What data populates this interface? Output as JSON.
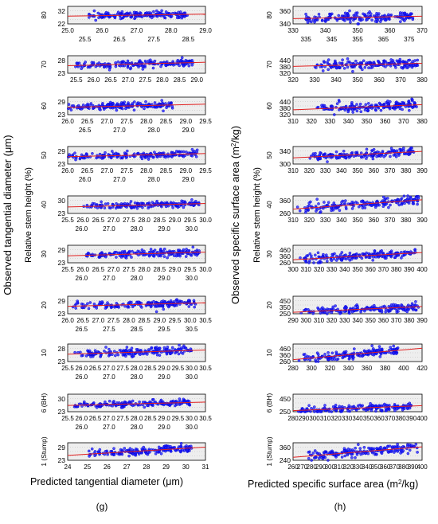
{
  "figure": {
    "panel_g_label": "(g)",
    "panel_h_label": "(h)",
    "left_ylabel_outer": "Observed tangential diameter (μm)",
    "right_ylabel_outer_prefix": "Observed specific surface area (m",
    "right_ylabel_outer_sup": "2",
    "right_ylabel_outer_suffix": "/kg)",
    "left_xlabel": "Predicted tangential diameter (μm)",
    "right_xlabel_prefix": "Predicted specific surface area (m",
    "right_xlabel_sup": "2",
    "right_xlabel_suffix": "/kg)",
    "stem_height_label": "Relative stem height (%)"
  },
  "colors": {
    "points": "#1a1aff",
    "points_stroke": "#0000cc",
    "fit_line": "#e02020",
    "panel_bg": "#eeeeee",
    "grid": "#bbbbbb"
  },
  "chart_data": [
    {
      "type": "scatter",
      "panel": "g",
      "height_label": "80",
      "xlim": [
        25.0,
        29.0
      ],
      "ylim": [
        20,
        34
      ],
      "top_ticks": [
        "25.0",
        "26.0",
        "27.0",
        "28.0",
        "29.0"
      ],
      "bottom_ticks": [
        "25.5",
        "26.5",
        "27.5",
        "28.5"
      ],
      "y_ticks": [
        "32",
        "22"
      ],
      "x_range": [
        25.6,
        28.5
      ],
      "y_center": 27,
      "y_spread": 2.3,
      "fit": [
        [
          25.0,
          26.2
        ],
        [
          29.0,
          27.8
        ]
      ]
    },
    {
      "type": "scatter",
      "panel": "g",
      "height_label": "70",
      "xlim": [
        25.5,
        29.0
      ],
      "ylim": [
        21,
        31
      ],
      "top_ticks": [],
      "bottom_ticks": [
        "25.5",
        "26.0",
        "26.5",
        "27.0",
        "27.5",
        "28.0",
        "28.5",
        "29.0"
      ],
      "y_ticks": [
        "28",
        "23"
      ],
      "x_range": [
        25.7,
        28.7
      ],
      "y_center": 26,
      "y_spread": 1.8,
      "fit": [
        [
          25.5,
          25.3
        ],
        [
          29.0,
          27.3
        ]
      ]
    },
    {
      "type": "scatter",
      "panel": "g",
      "height_label": "60",
      "xlim": [
        26.0,
        29.5
      ],
      "ylim": [
        21,
        32
      ],
      "top_ticks": [
        "26.0",
        "26.5",
        "27.0",
        "27.5",
        "28.0",
        "28.5",
        "29.0",
        "29.5"
      ],
      "bottom_ticks": [
        "26.5",
        "27.0",
        "28.0",
        "29.0"
      ],
      "y_ticks": [
        "29",
        "23"
      ],
      "x_range": [
        26.0,
        28.7
      ],
      "y_center": 26.5,
      "y_spread": 1.8,
      "fit": [
        [
          26.0,
          25.6
        ],
        [
          29.5,
          27.6
        ]
      ]
    },
    {
      "type": "scatter",
      "panel": "g",
      "height_label": "50",
      "xlim": [
        26.0,
        29.5
      ],
      "ylim": [
        21,
        32
      ],
      "top_ticks": [
        "26.0",
        "26.5",
        "27.0",
        "27.5",
        "28.0",
        "28.5",
        "29.0",
        "29.5"
      ],
      "bottom_ticks": [
        "26.0",
        "27.0",
        "28.0",
        "29.0"
      ],
      "y_ticks": [
        "29",
        "23"
      ],
      "x_range": [
        26.0,
        29.3
      ],
      "y_center": 26.5,
      "y_spread": 1.8,
      "fit": [
        [
          26.0,
          25.6
        ],
        [
          29.5,
          27.6
        ]
      ]
    },
    {
      "type": "scatter",
      "panel": "g",
      "height_label": "40",
      "xlim": [
        25.5,
        30.0
      ],
      "ylim": [
        21,
        33
      ],
      "top_ticks": [
        "25.5",
        "26.0",
        "26.5",
        "27.0",
        "27.5",
        "28.0",
        "28.5",
        "29.0",
        "29.5",
        "30.0"
      ],
      "bottom_ticks": [
        "26.0",
        "27.0",
        "28.0",
        "29.0",
        "30.0"
      ],
      "y_ticks": [
        "30",
        "23"
      ],
      "x_range": [
        26.0,
        29.8
      ],
      "y_center": 26.5,
      "y_spread": 1.8,
      "fit": [
        [
          25.5,
          25.4
        ],
        [
          30.0,
          27.8
        ]
      ]
    },
    {
      "type": "scatter",
      "panel": "g",
      "height_label": "30",
      "xlim": [
        25.5,
        30.0
      ],
      "ylim": [
        21,
        32
      ],
      "top_ticks": [
        "25.5",
        "26.0",
        "26.5",
        "27.0",
        "27.5",
        "28.0",
        "28.5",
        "29.0",
        "29.5",
        "30.0"
      ],
      "bottom_ticks": [
        "26.0",
        "27.0",
        "28.0",
        "29.0",
        "30.0"
      ],
      "y_ticks": [
        "29",
        "23"
      ],
      "x_range": [
        26.0,
        29.8
      ],
      "y_center": 26.4,
      "y_spread": 1.8,
      "fit": [
        [
          25.5,
          25.4
        ],
        [
          30.0,
          27.7
        ]
      ]
    },
    {
      "type": "scatter",
      "panel": "g",
      "height_label": "20",
      "xlim": [
        26.0,
        30.5
      ],
      "ylim": [
        21,
        32
      ],
      "top_ticks": [
        "26.0",
        "26.5",
        "27.0",
        "27.5",
        "28.0",
        "28.5",
        "29.0",
        "29.5",
        "30.0",
        "30.5"
      ],
      "bottom_ticks": [
        "26.5",
        "27.5",
        "28.5",
        "29.5",
        "30.5"
      ],
      "y_ticks": [
        "29",
        "23"
      ],
      "x_range": [
        26.1,
        30.2
      ],
      "y_center": 26.6,
      "y_spread": 1.8,
      "fit": [
        [
          26.0,
          25.7
        ],
        [
          30.5,
          27.9
        ]
      ]
    },
    {
      "type": "scatter",
      "panel": "g",
      "height_label": "10",
      "xlim": [
        25.5,
        30.5
      ],
      "ylim": [
        21,
        31
      ],
      "top_ticks": [
        "25.5",
        "26.0",
        "26.5",
        "27.0",
        "27.5",
        "28.0",
        "28.5",
        "29.0",
        "29.5",
        "30.0",
        "30.5"
      ],
      "bottom_ticks": [
        "26.0",
        "27.0",
        "28.0",
        "29.0",
        "30.0"
      ],
      "y_ticks": [
        "28",
        "23"
      ],
      "x_range": [
        25.7,
        30.0
      ],
      "y_center": 26,
      "y_spread": 1.7,
      "fit": [
        [
          25.5,
          25.2
        ],
        [
          30.5,
          27.6
        ]
      ]
    },
    {
      "type": "scatter",
      "panel": "g",
      "height_label": "6 (BH)",
      "xlim": [
        25.5,
        30.5
      ],
      "ylim": [
        21,
        33
      ],
      "top_ticks": [
        "25.5",
        "26.0",
        "26.5",
        "27.0",
        "27.5",
        "28.0",
        "28.5",
        "29.0",
        "29.5",
        "30.0",
        "30.5"
      ],
      "bottom_ticks": [
        "26.0",
        "27.0",
        "28.0",
        "29.0",
        "30.0"
      ],
      "y_ticks": [
        "30",
        "23"
      ],
      "x_range": [
        25.7,
        30.0
      ],
      "y_center": 26.3,
      "y_spread": 1.8,
      "fit": [
        [
          25.5,
          25.3
        ],
        [
          30.5,
          27.6
        ]
      ]
    },
    {
      "type": "scatter",
      "panel": "g",
      "height_label": "1 (Stump)",
      "xlim": [
        24,
        31
      ],
      "ylim": [
        21,
        31
      ],
      "top_ticks": [
        "24",
        "25",
        "26",
        "27",
        "28",
        "29",
        "30",
        "31"
      ],
      "bottom_ticks": [],
      "y_ticks": [
        "29",
        "23"
      ],
      "x_range": [
        25.0,
        30.3
      ],
      "y_center": 25.5,
      "y_spread": 1.8,
      "fit": [
        [
          24,
          23.8
        ],
        [
          31,
          28.5
        ]
      ]
    },
    {
      "type": "scatter",
      "panel": "h",
      "height_label": "80",
      "xlim": [
        330,
        375
      ],
      "ylim": [
        335,
        385
      ],
      "top_ticks": [
        "330",
        "340",
        "350",
        "360",
        "370"
      ],
      "bottom_ticks": [
        "335",
        "345",
        "355",
        "365",
        "375"
      ],
      "y_ticks": [
        "360",
        "340"
      ],
      "x_range": [
        334,
        372
      ],
      "y_center": 354,
      "y_spread": 12,
      "fit": [
        [
          330,
          350
        ],
        [
          375,
          357
        ]
      ]
    },
    {
      "type": "scatter",
      "panel": "h",
      "height_label": "70",
      "xlim": [
        320,
        380
      ],
      "ylim": [
        315,
        450
      ],
      "top_ticks": [
        "320",
        "330",
        "340",
        "350",
        "360",
        "370",
        "380"
      ],
      "bottom_ticks": [],
      "y_ticks": [
        "440",
        "380",
        "320"
      ],
      "x_range": [
        330,
        378
      ],
      "y_center": 375,
      "y_spread": 28,
      "fit": [
        [
          320,
          368
        ],
        [
          380,
          392
        ]
      ]
    },
    {
      "type": "scatter",
      "panel": "h",
      "height_label": "60",
      "xlim": [
        310,
        380
      ],
      "ylim": [
        305,
        450
      ],
      "top_ticks": [
        "310",
        "320",
        "330",
        "340",
        "350",
        "360",
        "370",
        "380"
      ],
      "bottom_ticks": [],
      "y_ticks": [
        "440",
        "380",
        "320"
      ],
      "x_range": [
        322,
        377
      ],
      "y_center": 365,
      "y_spread": 30,
      "fit": [
        [
          310,
          345
        ],
        [
          380,
          388
        ]
      ]
    },
    {
      "type": "scatter",
      "panel": "h",
      "height_label": "50",
      "xlim": [
        310,
        390
      ],
      "ylim": [
        295,
        360
      ],
      "top_ticks": [
        "310",
        "320",
        "330",
        "340",
        "350",
        "360",
        "370",
        "380",
        "390"
      ],
      "bottom_ticks": [],
      "y_ticks": [
        "340",
        "300"
      ],
      "x_range": [
        320,
        385
      ],
      "y_center": 330,
      "y_spread": 12,
      "fit": [
        [
          310,
          318
        ],
        [
          390,
          342
        ]
      ]
    },
    {
      "type": "scatter",
      "panel": "h",
      "height_label": "40",
      "xlim": [
        310,
        390
      ],
      "ylim": [
        245,
        395
      ],
      "top_ticks": [
        "310",
        "320",
        "330",
        "340",
        "350",
        "360",
        "370",
        "380",
        "390"
      ],
      "bottom_ticks": [],
      "y_ticks": [
        "360",
        "260"
      ],
      "x_range": [
        312,
        388
      ],
      "y_center": 315,
      "y_spread": 32,
      "fit": [
        [
          310,
          282
        ],
        [
          390,
          362
        ]
      ]
    },
    {
      "type": "scatter",
      "panel": "h",
      "height_label": "30",
      "xlim": [
        300,
        400
      ],
      "ylim": [
        245,
        475
      ],
      "top_ticks": [
        "300",
        "310",
        "320",
        "330",
        "340",
        "350",
        "360",
        "370",
        "380",
        "390",
        "400"
      ],
      "bottom_ticks": [],
      "y_ticks": [
        "460",
        "360",
        "260"
      ],
      "x_range": [
        305,
        395
      ],
      "y_center": 320,
      "y_spread": 45,
      "fit": [
        [
          300,
          285
        ],
        [
          400,
          380
        ]
      ]
    },
    {
      "type": "scatter",
      "panel": "h",
      "height_label": "20",
      "xlim": [
        290,
        390
      ],
      "ylim": [
        240,
        470
      ],
      "top_ticks": [
        "290",
        "300",
        "310",
        "320",
        "330",
        "340",
        "350",
        "360",
        "370",
        "380",
        "390"
      ],
      "bottom_ticks": [],
      "y_ticks": [
        "450",
        "350",
        "250"
      ],
      "x_range": [
        296,
        388
      ],
      "y_center": 290,
      "y_spread": 40,
      "fit": [
        [
          290,
          260
        ],
        [
          390,
          335
        ]
      ]
    },
    {
      "type": "scatter",
      "panel": "h",
      "height_label": "10",
      "xlim": [
        280,
        420
      ],
      "ylim": [
        245,
        475
      ],
      "top_ticks": [
        "280",
        "300",
        "320",
        "340",
        "360",
        "380",
        "400",
        "420"
      ],
      "bottom_ticks": [],
      "y_ticks": [
        "460",
        "360",
        "260"
      ],
      "x_range": [
        285,
        395
      ],
      "y_center": 325,
      "y_spread": 50,
      "fit": [
        [
          280,
          270
        ],
        [
          420,
          420
        ]
      ]
    },
    {
      "type": "scatter",
      "panel": "h",
      "height_label": "6 (BH)",
      "xlim": [
        280,
        400
      ],
      "ylim": [
        240,
        470
      ],
      "top_ticks": [
        "280",
        "290",
        "300",
        "310",
        "320",
        "330",
        "340",
        "350",
        "360",
        "370",
        "380",
        "390",
        "400"
      ],
      "bottom_ticks": [],
      "y_ticks": [
        "450",
        "250"
      ],
      "x_range": [
        285,
        390
      ],
      "y_center": 285,
      "y_spread": 40,
      "fit": [
        [
          280,
          255
        ],
        [
          400,
          320
        ]
      ]
    },
    {
      "type": "scatter",
      "panel": "h",
      "height_label": "1 (Stump)",
      "xlim": [
        260,
        400
      ],
      "ylim": [
        225,
        385
      ],
      "top_ticks": [
        "260",
        "270",
        "280",
        "290",
        "300",
        "310",
        "320",
        "330",
        "340",
        "350",
        "360",
        "370",
        "380",
        "390",
        "400"
      ],
      "bottom_ticks": [],
      "y_ticks": [
        "360",
        "240"
      ],
      "x_range": [
        275,
        395
      ],
      "y_center": 300,
      "y_spread": 35,
      "fit": [
        [
          260,
          252
        ],
        [
          400,
          348
        ]
      ]
    }
  ]
}
